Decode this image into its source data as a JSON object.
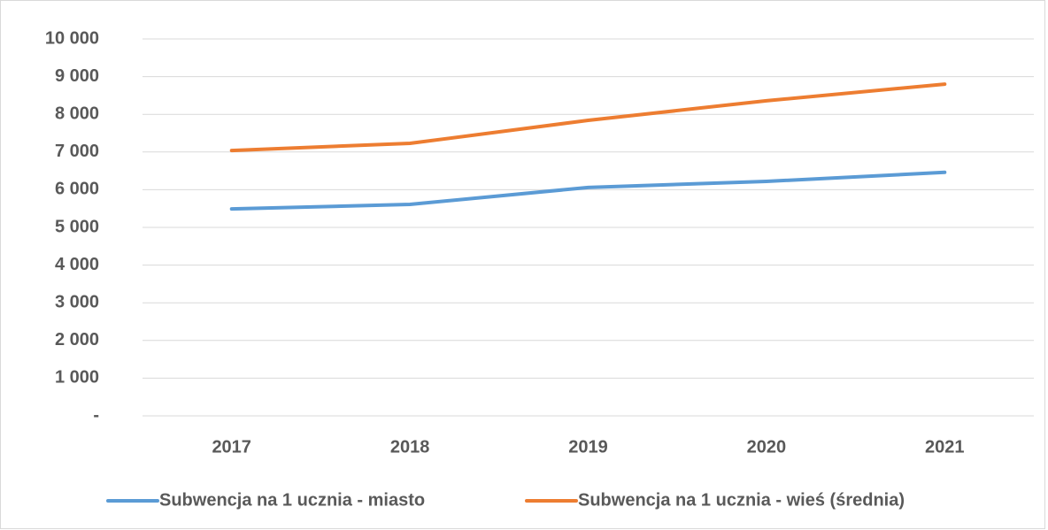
{
  "chart_data": {
    "type": "line",
    "categories": [
      "2017",
      "2018",
      "2019",
      "2020",
      "2021"
    ],
    "series": [
      {
        "name": "Subwencja na 1 ucznia - miasto",
        "color": "#5b9bd5",
        "values": [
          5490,
          5610,
          6060,
          6220,
          6460
        ]
      },
      {
        "name": "Subwencja na 1 ucznia - wieś (średnia)",
        "color": "#ed7d31",
        "values": [
          7040,
          7230,
          7840,
          8360,
          8800
        ]
      }
    ],
    "ylim": [
      0,
      10000
    ],
    "yticks": [
      {
        "value": 0,
        "label": "-"
      },
      {
        "value": 1000,
        "label": "1 000"
      },
      {
        "value": 2000,
        "label": "2 000"
      },
      {
        "value": 3000,
        "label": "3 000"
      },
      {
        "value": 4000,
        "label": "4 000"
      },
      {
        "value": 5000,
        "label": "5 000"
      },
      {
        "value": 6000,
        "label": "6 000"
      },
      {
        "value": 7000,
        "label": "7 000"
      },
      {
        "value": 8000,
        "label": "8 000"
      },
      {
        "value": 9000,
        "label": "9 000"
      },
      {
        "value": 10000,
        "label": "10 000"
      }
    ],
    "grid": true,
    "legend": "bottom"
  }
}
